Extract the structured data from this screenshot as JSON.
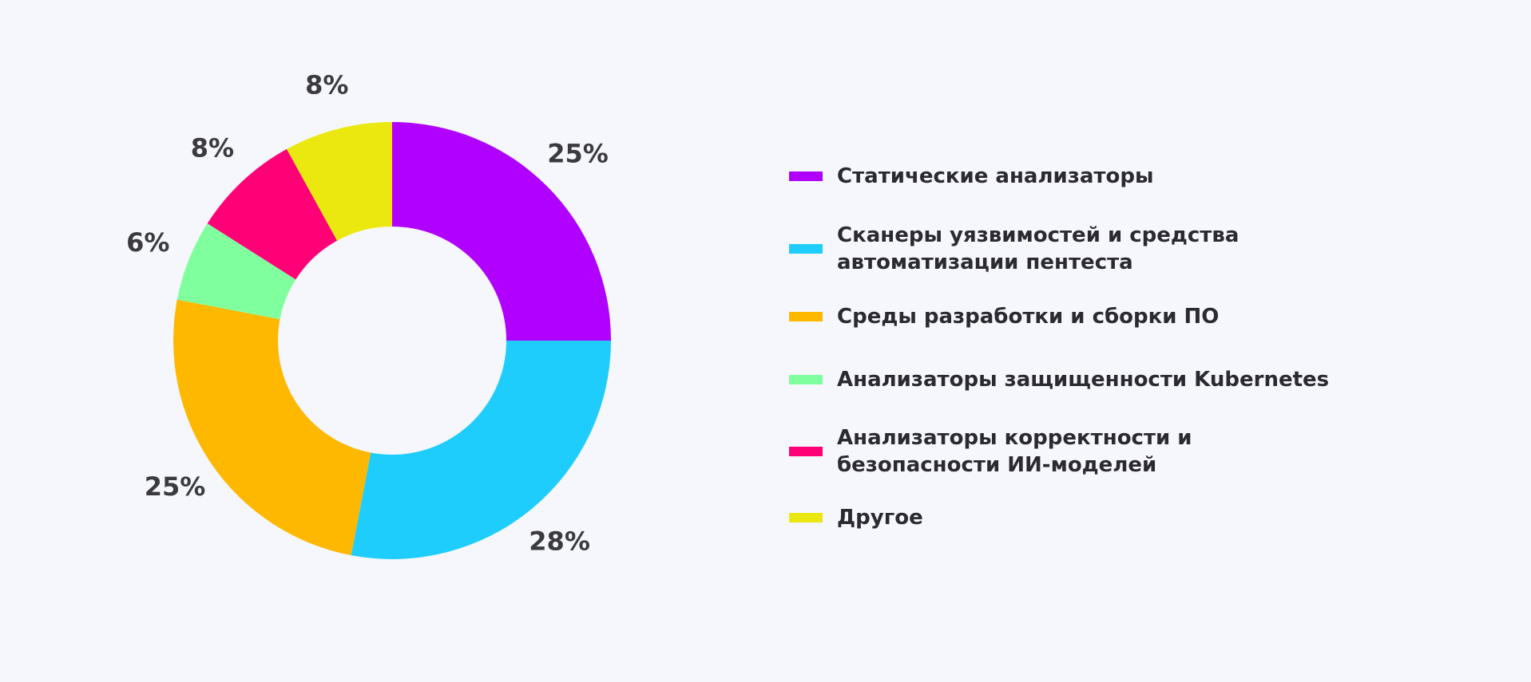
{
  "chart_data": {
    "type": "donut",
    "categories": [
      "Статические анализаторы",
      "Сканеры уязвимостей и средства\nавтоматизации пентеста",
      "Среды разработки и сборки ПО",
      "Анализаторы защищенности Kubernetes",
      "Анализаторы корректности и\nбезопасности ИИ-моделей",
      "Другое"
    ],
    "values": [
      25,
      28,
      25,
      6,
      8,
      8
    ],
    "value_labels": [
      "25%",
      "28%",
      "25%",
      "6%",
      "8%",
      "8%"
    ],
    "colors": [
      "#b000ff",
      "#1fcdfc",
      "#ffb800",
      "#80ff9e",
      "#ff0077",
      "#eae80f"
    ],
    "legend": "right"
  }
}
